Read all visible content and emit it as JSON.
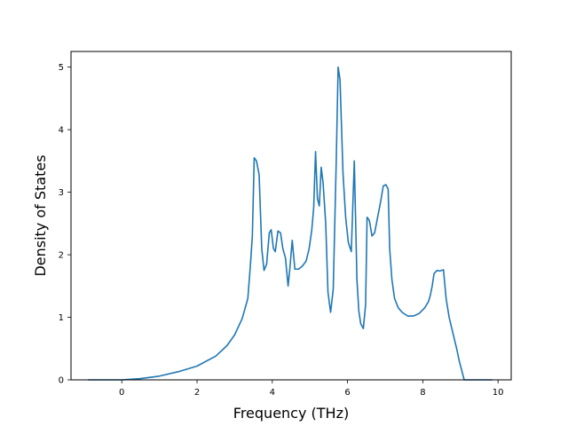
{
  "chart_data": {
    "type": "line",
    "title": "",
    "xlabel": "Frequency (THz)",
    "ylabel": "Density of States",
    "xlim": [
      -1.35,
      10.35
    ],
    "ylim": [
      0,
      5.25
    ],
    "xticks": [
      0,
      2,
      4,
      6,
      8,
      10
    ],
    "yticks": [
      0,
      1,
      2,
      3,
      4,
      5
    ],
    "grid": false,
    "legend": "none",
    "series": [
      {
        "color": "#1f77b4",
        "x": [
          -0.9,
          0.0,
          0.5,
          1.0,
          1.5,
          2.0,
          2.5,
          2.8,
          3.0,
          3.2,
          3.35,
          3.42,
          3.47,
          3.52,
          3.58,
          3.65,
          3.72,
          3.78,
          3.85,
          3.92,
          3.97,
          4.03,
          4.08,
          4.15,
          4.22,
          4.28,
          4.35,
          4.42,
          4.47,
          4.53,
          4.6,
          4.7,
          4.8,
          4.9,
          4.98,
          5.05,
          5.1,
          5.15,
          5.2,
          5.25,
          5.3,
          5.35,
          5.42,
          5.48,
          5.55,
          5.62,
          5.7,
          5.75,
          5.8,
          5.88,
          5.95,
          6.02,
          6.1,
          6.18,
          6.25,
          6.3,
          6.35,
          6.42,
          6.48,
          6.52,
          6.58,
          6.65,
          6.72,
          6.8,
          6.88,
          6.95,
          7.02,
          7.08,
          7.12,
          7.18,
          7.25,
          7.35,
          7.45,
          7.6,
          7.75,
          7.9,
          8.05,
          8.15,
          8.2,
          8.25,
          8.3,
          8.38,
          8.45,
          8.5,
          8.55,
          8.62,
          8.7,
          8.8,
          8.9,
          8.97,
          9.1,
          9.5,
          9.85
        ],
        "y": [
          0.0,
          0.0,
          0.02,
          0.06,
          0.13,
          0.22,
          0.38,
          0.55,
          0.72,
          0.98,
          1.3,
          1.85,
          2.3,
          3.55,
          3.5,
          3.28,
          2.1,
          1.75,
          1.85,
          2.35,
          2.4,
          2.1,
          2.05,
          2.38,
          2.35,
          2.1,
          1.95,
          1.5,
          1.8,
          2.23,
          1.77,
          1.77,
          1.82,
          1.9,
          2.1,
          2.4,
          2.75,
          3.65,
          2.9,
          2.78,
          3.4,
          3.15,
          2.5,
          1.4,
          1.08,
          1.45,
          3.5,
          5.0,
          4.8,
          3.3,
          2.6,
          2.2,
          2.05,
          3.5,
          1.6,
          1.1,
          0.9,
          0.82,
          1.2,
          2.6,
          2.55,
          2.3,
          2.35,
          2.6,
          2.85,
          3.1,
          3.12,
          3.05,
          2.1,
          1.6,
          1.3,
          1.15,
          1.08,
          1.02,
          1.02,
          1.06,
          1.15,
          1.25,
          1.35,
          1.5,
          1.7,
          1.75,
          1.74,
          1.75,
          1.76,
          1.3,
          1.0,
          0.75,
          0.5,
          0.3,
          0.0,
          0.0,
          0.0
        ]
      }
    ]
  }
}
